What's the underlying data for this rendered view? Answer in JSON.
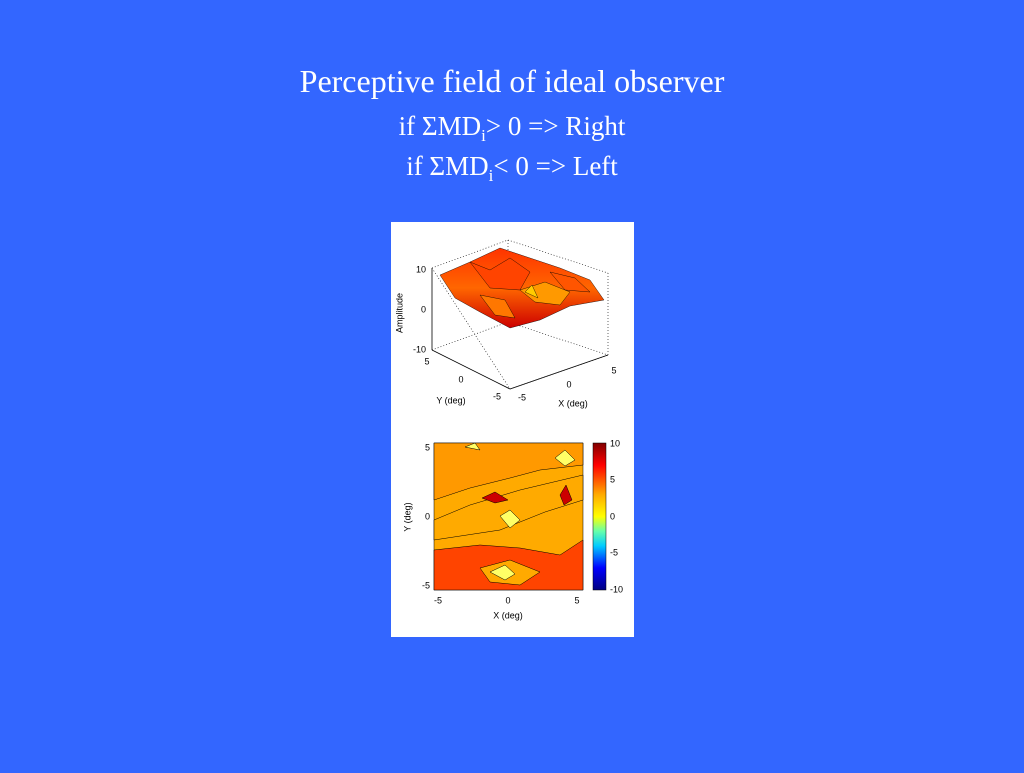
{
  "title": {
    "line1": "Perceptive field of ideal observer",
    "line2": {
      "pre": "if ΣMD",
      "sub": "i",
      "post": "> 0  => Right"
    },
    "line3": {
      "pre": "if ΣMD",
      "sub": "i",
      "post": "< 0 => Left"
    }
  },
  "figure": {
    "surface": {
      "z_label": "Amplitude",
      "z_ticks": [
        "10",
        "0",
        "-10"
      ],
      "y_label": "Y (deg)",
      "y_ticks": [
        "5",
        "0",
        "-5"
      ],
      "x_label": "X (deg)",
      "x_ticks": [
        "-5",
        "0",
        "5"
      ]
    },
    "contour": {
      "y_label": "Y (deg)",
      "y_ticks": [
        "5",
        "0",
        "-5"
      ],
      "x_label": "X (deg)",
      "x_ticks": [
        "-5",
        "0",
        "5"
      ],
      "colorbar_ticks": [
        "10",
        "5",
        "0",
        "-5",
        "-10"
      ]
    }
  }
}
